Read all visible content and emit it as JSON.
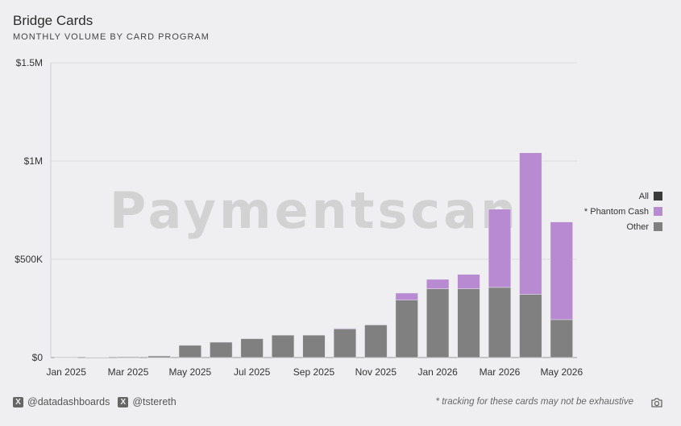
{
  "header": {
    "title": "Bridge Cards",
    "subtitle": "MONTHLY VOLUME BY CARD PROGRAM"
  },
  "watermark": "Paymentscan",
  "legend": {
    "items": [
      {
        "label": "All",
        "color": "#3a3a3a"
      },
      {
        "label": "* Phantom Cash",
        "color": "#b88ad2"
      },
      {
        "label": "Other",
        "color": "#808080"
      }
    ]
  },
  "footer": {
    "handles": [
      "@datadashboards",
      "@tstereth"
    ],
    "note": "* tracking for these cards may not be exhaustive",
    "camera_icon": "camera-icon"
  },
  "chart_data": {
    "type": "bar",
    "stacked": true,
    "categories": [
      "Jan 2025",
      "Feb 2025",
      "Mar 2025",
      "Apr 2025",
      "May 2025",
      "Jun 2025",
      "Jul 2025",
      "Aug 2025",
      "Sep 2025",
      "Oct 2025",
      "Nov 2025",
      "Dec 2025",
      "Jan 2026",
      "Feb 2026",
      "Mar 2026",
      "Apr 2026",
      "May 2026"
    ],
    "x_tick_labels": [
      "Jan 2025",
      "Mar 2025",
      "May 2025",
      "Jul 2025",
      "Sep 2025",
      "Nov 2025",
      "Jan 2026",
      "Mar 2026",
      "May 2026"
    ],
    "series": [
      {
        "name": "Other",
        "color": "#808080",
        "values": [
          2000,
          1000,
          4000,
          8000,
          62000,
          78000,
          96000,
          114000,
          114000,
          146000,
          166000,
          292000,
          350000,
          350000,
          357000,
          322000,
          193000
        ]
      },
      {
        "name": "* Phantom Cash",
        "color": "#b88ad2",
        "values": [
          0,
          0,
          0,
          0,
          0,
          0,
          0,
          0,
          0,
          3000,
          0,
          36000,
          48000,
          73000,
          398000,
          720000,
          497000
        ]
      }
    ],
    "y_ticks": [
      "$0",
      "$500K",
      "$1M",
      "$1.5M"
    ],
    "y_tick_values": [
      0,
      500000,
      1000000,
      1500000
    ],
    "ylim": [
      0,
      1500000
    ],
    "grid": true,
    "legend_position": "right"
  }
}
